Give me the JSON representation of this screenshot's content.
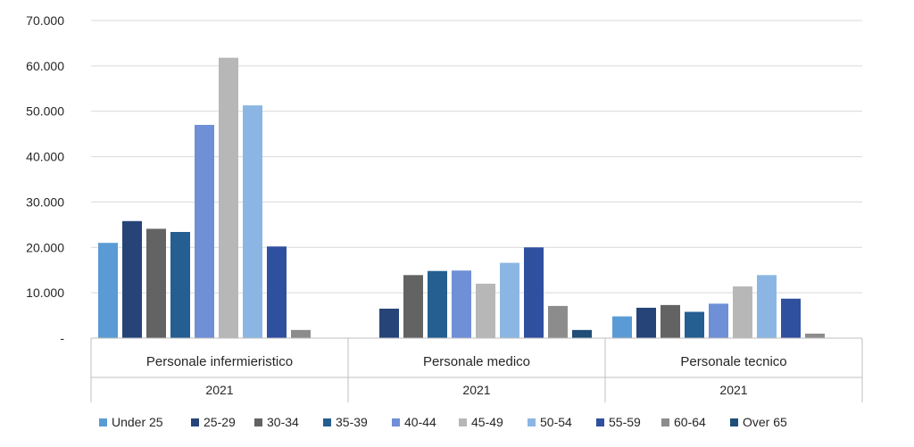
{
  "chart_data": {
    "type": "bar",
    "title": "",
    "xlabel": "",
    "ylabel": "",
    "ylim": [
      0,
      70000
    ],
    "y_ticks": [
      0,
      10000,
      20000,
      30000,
      40000,
      50000,
      60000,
      70000
    ],
    "y_tick_labels": [
      "-",
      "10.000",
      "20.000",
      "30.000",
      "40.000",
      "50.000",
      "60.000",
      "70.000"
    ],
    "grid": true,
    "legend_position": "bottom",
    "categories": [
      "Personale infermieristico",
      "Personale medico",
      "Personale tecnico"
    ],
    "year_labels": [
      "2021",
      "2021",
      "2021"
    ],
    "series": [
      {
        "name": "Under 25",
        "color": "#5b9bd5",
        "values": [
          21000,
          0,
          4800
        ]
      },
      {
        "name": "25-29",
        "color": "#264478",
        "values": [
          25800,
          6500,
          6700
        ]
      },
      {
        "name": "30-34",
        "color": "#636363",
        "values": [
          24100,
          13900,
          7300
        ]
      },
      {
        "name": "35-39",
        "color": "#255e91",
        "values": [
          23400,
          14800,
          5800
        ]
      },
      {
        "name": "40-44",
        "color": "#6f8fd6",
        "values": [
          47000,
          14900,
          7600
        ]
      },
      {
        "name": "45-49",
        "color": "#b7b7b7",
        "values": [
          61800,
          12000,
          11400
        ]
      },
      {
        "name": "50-54",
        "color": "#8bb6e3",
        "values": [
          51300,
          16600,
          13900
        ]
      },
      {
        "name": "55-59",
        "color": "#2f4f9f",
        "values": [
          20200,
          20000,
          8700
        ]
      },
      {
        "name": "60-64",
        "color": "#8c8c8c",
        "values": [
          1800,
          7100,
          1000
        ]
      },
      {
        "name": "Over 65",
        "color": "#1f4e79",
        "values": [
          0,
          1800,
          0
        ]
      }
    ]
  }
}
